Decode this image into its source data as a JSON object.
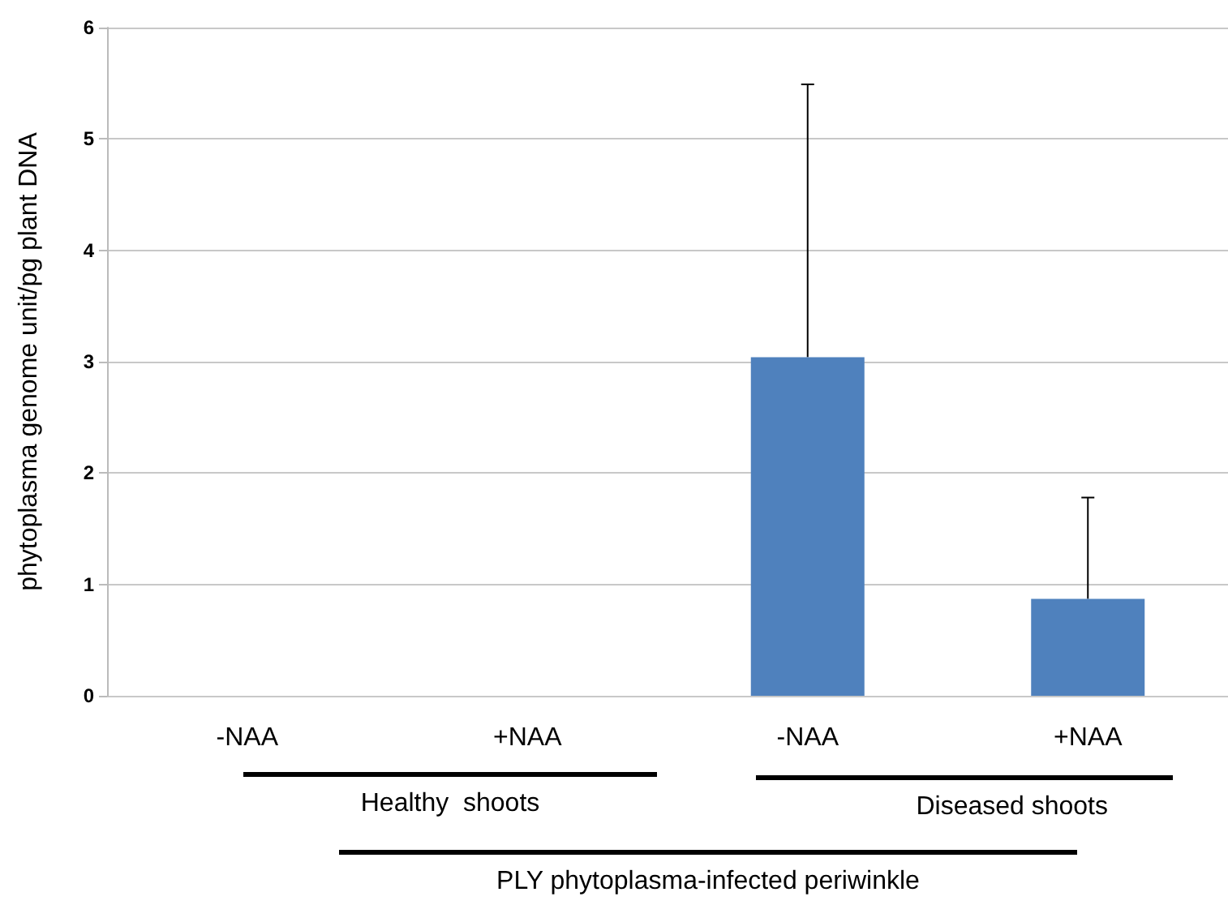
{
  "chart_data": {
    "type": "bar",
    "ylabel": "phytoplasma genome unit/pg plant DNA",
    "categories": [
      "-NAA",
      "+NAA",
      "-NAA",
      "+NAA"
    ],
    "values": [
      0,
      0,
      3.04,
      0.87
    ],
    "errors": [
      null,
      null,
      [
        3.04,
        5.49
      ],
      [
        0.87,
        1.78
      ]
    ],
    "color": "#4f81bd",
    "ylim": [
      0,
      6
    ],
    "yticks": [
      0,
      1,
      2,
      3,
      4,
      5,
      6
    ],
    "grid": "y",
    "annotations": [
      "Healthy  shoots",
      "Diseased shoots",
      "PLY phytoplasma-infected periwinkle"
    ]
  }
}
